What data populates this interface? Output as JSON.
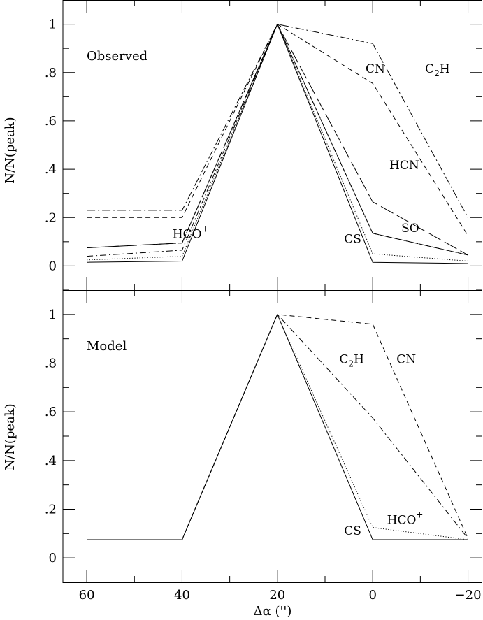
{
  "chart_data": [
    {
      "type": "line",
      "panel_label": "Observed",
      "xlabel": "Δα ('')",
      "ylabel": "N/N(peak)",
      "xlim": [
        65,
        -23
      ],
      "ylim": [
        -0.1,
        1.1
      ],
      "x": [
        60,
        40,
        20,
        0,
        -20
      ],
      "y_ticks": [
        0,
        0.2,
        0.4,
        0.6,
        0.8,
        1
      ],
      "y_tick_labels": [
        "0",
        ".2",
        ".4",
        ".6",
        ".8",
        "1"
      ],
      "series": [
        {
          "name": "CS",
          "dash": "solid",
          "values": [
            0.015,
            0.02,
            1.0,
            0.015,
            0.01
          ]
        },
        {
          "name": "SO",
          "dash": "dotted",
          "values": [
            0.025,
            0.04,
            1.0,
            0.05,
            0.02
          ]
        },
        {
          "name": "HCO+",
          "dash": "dashdot",
          "values": [
            0.04,
            0.065,
            1.0,
            0.135,
            0.045
          ]
        },
        {
          "name": "HCO+",
          "dash": "longdash",
          "values": [
            0.075,
            0.095,
            1.0,
            0.135,
            0.045
          ]
        },
        {
          "name": "HCN",
          "dash": "longdash2",
          "values": [
            0.075,
            0.095,
            1.0,
            0.265,
            0.045
          ]
        },
        {
          "name": "CN",
          "dash": "dashed",
          "values": [
            0.2,
            0.2,
            1.0,
            0.755,
            0.125
          ]
        },
        {
          "name": "C2H",
          "dash": "dashdot2",
          "values": [
            0.23,
            0.23,
            1.0,
            0.92,
            0.2
          ]
        }
      ],
      "labels": [
        {
          "main": "CN",
          "sub": "",
          "sup": "",
          "x": 1.5,
          "y": 0.8
        },
        {
          "main": "C",
          "sub": "2",
          "sup": "",
          "tail": "H",
          "x": -11,
          "y": 0.8
        },
        {
          "main": "HCN",
          "sub": "",
          "sup": "",
          "x": -3.5,
          "y": 0.4
        },
        {
          "main": "SO",
          "sub": "",
          "sup": "",
          "x": -6,
          "y": 0.14
        },
        {
          "main": "CS",
          "sub": "",
          "sup": "",
          "x": 6,
          "y": 0.095
        },
        {
          "main": "HCO",
          "sub": "",
          "sup": "+",
          "x": 42,
          "y": 0.115
        }
      ]
    },
    {
      "type": "line",
      "panel_label": "Model",
      "xlabel": "Δα ('')",
      "ylabel": "N/N(peak)",
      "xlim": [
        65,
        -23
      ],
      "ylim": [
        -0.1,
        1.1
      ],
      "x": [
        60,
        40,
        20,
        0,
        -20
      ],
      "x_ticks": [
        60,
        40,
        20,
        0,
        -20
      ],
      "x_tick_labels": [
        "60",
        "40",
        "20",
        "0",
        "−20"
      ],
      "y_ticks": [
        0,
        0.2,
        0.4,
        0.6,
        0.8,
        1
      ],
      "y_tick_labels": [
        "0",
        ".2",
        ".4",
        ".6",
        ".8",
        "1"
      ],
      "series": [
        {
          "name": "CS",
          "dash": "solid",
          "values": [
            0.075,
            0.075,
            1.0,
            0.075,
            0.075
          ]
        },
        {
          "name": "HCO+",
          "dash": "dotted",
          "values": [
            0.075,
            0.075,
            1.0,
            0.125,
            0.075
          ]
        },
        {
          "name": "C2H",
          "dash": "dashdot",
          "values": [
            0.075,
            0.075,
            1.0,
            0.575,
            0.08
          ]
        },
        {
          "name": "CN",
          "dash": "dashed",
          "values": [
            0.075,
            0.075,
            1.0,
            0.96,
            0.08
          ]
        }
      ],
      "labels": [
        {
          "main": "C",
          "sub": "2",
          "sup": "",
          "tail": "H",
          "x": 7,
          "y": 0.8
        },
        {
          "main": "CN",
          "sub": "",
          "sup": "",
          "x": -5,
          "y": 0.8
        },
        {
          "main": "HCO",
          "sub": "",
          "sup": "+",
          "x": -3,
          "y": 0.14
        },
        {
          "main": "CS",
          "sub": "",
          "sup": "",
          "x": 6,
          "y": 0.095
        }
      ]
    }
  ]
}
